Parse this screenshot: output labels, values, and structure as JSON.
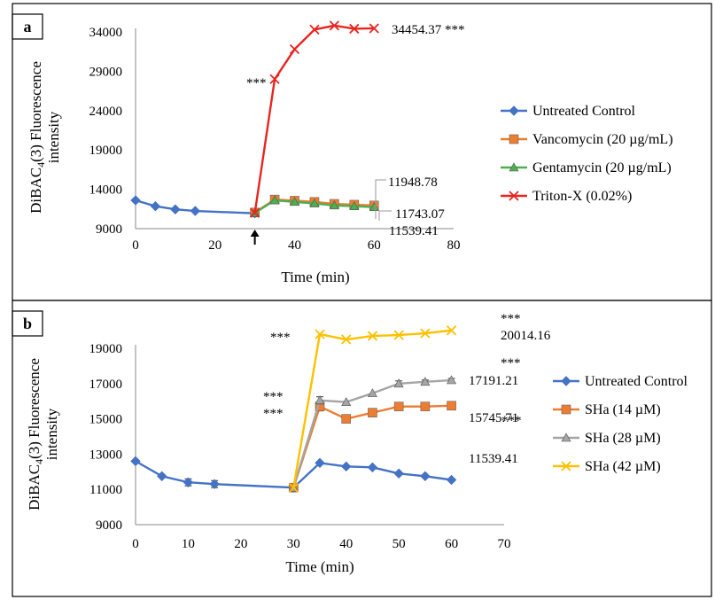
{
  "chart_data": [
    {
      "type": "line",
      "panel_label": "a",
      "xlabel": "Time (min)",
      "ylabel_line1": "DiBAC",
      "ylabel_sub": "4",
      "ylabel_rest": "(3) Fluorescence",
      "ylabel_line2": "intensity",
      "xlim": [
        0,
        80
      ],
      "ylim": [
        9000,
        34000
      ],
      "xticks": [
        0,
        20,
        40,
        60,
        80
      ],
      "yticks": [
        9000,
        14000,
        19000,
        24000,
        29000,
        34000
      ],
      "grid": false,
      "legend_position": "right",
      "series": [
        {
          "name": "Untreated Control",
          "color": "#4472C4",
          "marker": "diamond",
          "x": [
            0,
            5,
            10,
            15,
            30
          ],
          "y": [
            12600,
            11850,
            11450,
            11250,
            10950
          ]
        },
        {
          "name": "Vancomycin (20 µg/mL)",
          "color": "#ED7D31",
          "marker": "square",
          "x": [
            30,
            35,
            40,
            45,
            50,
            55,
            60
          ],
          "y": [
            11050,
            12700,
            12550,
            12400,
            12150,
            12050,
            11948.78
          ]
        },
        {
          "name": "Gentamycin (20 µg/mL)",
          "color": "#4CAF50",
          "marker": "triangle",
          "x": [
            30,
            35,
            40,
            45,
            50,
            55,
            60
          ],
          "y": [
            11000,
            12600,
            12400,
            12200,
            11950,
            11850,
            11743.07
          ]
        },
        {
          "name": "Triton-X (0.02%)",
          "color": "#E8251F",
          "marker": "x",
          "x": [
            30,
            35,
            40,
            45,
            50,
            55,
            60
          ],
          "y": [
            11000,
            28000,
            31800,
            34300,
            34800,
            34400,
            34454.37
          ]
        }
      ],
      "annotations": [
        {
          "text": "34454.37 ***",
          "x": 60,
          "y": 34454.37
        },
        {
          "text": "***",
          "x": 35,
          "y": 28000
        },
        {
          "text": "11948.78",
          "x": 60,
          "y": 11948.78
        },
        {
          "text": "11743.07",
          "x": 60,
          "y": 11743.07
        },
        {
          "text": "11539.41",
          "x": 60,
          "y": 11539.41
        }
      ],
      "arrow_marker_x": 30
    },
    {
      "type": "line",
      "panel_label": "b",
      "xlabel": "Time (min)",
      "ylabel_line1": "DiBAC",
      "ylabel_sub": "4",
      "ylabel_rest": "(3) Fluorescence",
      "ylabel_line2": "intensity",
      "xlim": [
        0,
        70
      ],
      "ylim": [
        9000,
        19000
      ],
      "xticks": [
        0,
        10,
        20,
        30,
        40,
        50,
        60,
        70
      ],
      "yticks": [
        9000,
        11000,
        13000,
        15000,
        17000,
        19000
      ],
      "grid": false,
      "legend_position": "right",
      "series": [
        {
          "name": "Untreated Control",
          "color": "#4472C4",
          "marker": "diamond",
          "x": [
            0,
            5,
            10,
            15,
            30,
            35,
            40,
            45,
            50,
            55,
            60
          ],
          "y": [
            12600,
            11750,
            11400,
            11300,
            11100,
            12500,
            12300,
            12250,
            11900,
            11750,
            11539.41
          ],
          "err": [
            0,
            0,
            200,
            200,
            0,
            0,
            0,
            0,
            0,
            0,
            0
          ]
        },
        {
          "name": "SHa (14 µM)",
          "color": "#ED7D31",
          "marker": "square",
          "x": [
            30,
            35,
            40,
            45,
            50,
            55,
            60
          ],
          "y": [
            11100,
            15700,
            15000,
            15350,
            15700,
            15700,
            15745.71
          ],
          "err": [
            0,
            250,
            0,
            0,
            0,
            0,
            0
          ]
        },
        {
          "name": "SHa (28 µM)",
          "color": "#A5A5A5",
          "marker": "triangle",
          "x": [
            30,
            35,
            40,
            45,
            50,
            55,
            60
          ],
          "y": [
            11100,
            16050,
            15950,
            16450,
            17000,
            17100,
            17191.21
          ],
          "err": [
            0,
            200,
            0,
            0,
            150,
            100,
            100
          ]
        },
        {
          "name": "SHa (42 µM)",
          "color": "#FFC000",
          "marker": "x",
          "x": [
            30,
            35,
            40,
            45,
            50,
            55,
            60
          ],
          "y": [
            11100,
            19800,
            19500,
            19700,
            19750,
            19850,
            20014.16
          ],
          "err": [
            0,
            0,
            0,
            0,
            0,
            0,
            0
          ]
        }
      ],
      "annotations": [
        {
          "text": "***",
          "x": 60,
          "y": 20014.16,
          "pos": "above"
        },
        {
          "text": "20014.16",
          "x": 60,
          "y": 20014.16
        },
        {
          "text": "***",
          "x": 60,
          "y": 17191.21,
          "pos": "above"
        },
        {
          "text": "17191.21",
          "x": 60,
          "y": 17191.21
        },
        {
          "text": "15745.71",
          "x": 60,
          "y": 15745.71
        },
        {
          "text": "***",
          "x": 60,
          "y": 15745.71,
          "pos": "below"
        },
        {
          "text": "11539.41",
          "x": 60,
          "y": 11539.41
        },
        {
          "text": "***",
          "x": 35,
          "y": 19800,
          "pos": "left"
        },
        {
          "text": "***",
          "x": 35,
          "y": 16050,
          "pos": "left"
        },
        {
          "text": "***",
          "x": 35,
          "y": 15700,
          "pos": "left"
        }
      ]
    }
  ]
}
